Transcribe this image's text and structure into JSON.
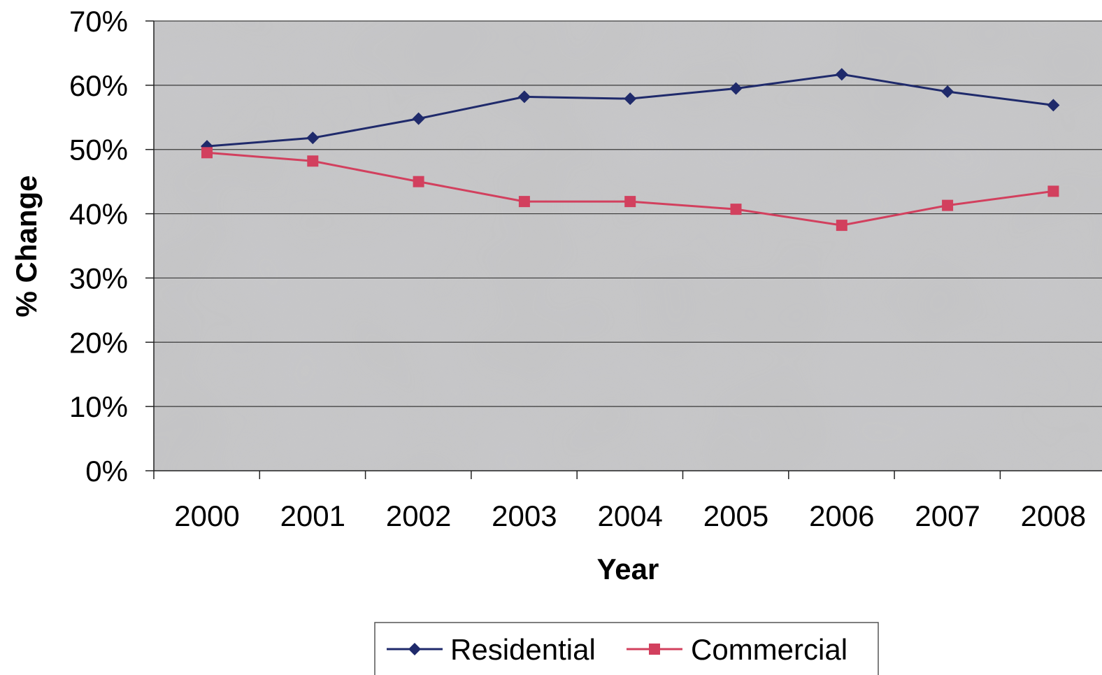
{
  "chart_data": {
    "type": "line",
    "title": "",
    "xlabel": "Year",
    "ylabel": "% Change",
    "categories": [
      "2000",
      "2001",
      "2002",
      "2003",
      "2004",
      "2005",
      "2006",
      "2007",
      "2008"
    ],
    "ylim": [
      0,
      70
    ],
    "yticks": [
      "0%",
      "10%",
      "20%",
      "30%",
      "40%",
      "50%",
      "60%",
      "70%"
    ],
    "grid": true,
    "legend_position": "bottom",
    "series": [
      {
        "name": "Residential",
        "values": [
          50.5,
          51.8,
          54.8,
          58.2,
          57.9,
          59.5,
          61.7,
          59.0,
          56.9
        ],
        "color": "#1f2a6b",
        "marker": "diamond"
      },
      {
        "name": "Commercial",
        "values": [
          49.5,
          48.2,
          45.0,
          41.9,
          41.9,
          40.7,
          38.2,
          41.3,
          43.5
        ],
        "color": "#d2405e",
        "marker": "square"
      }
    ]
  }
}
